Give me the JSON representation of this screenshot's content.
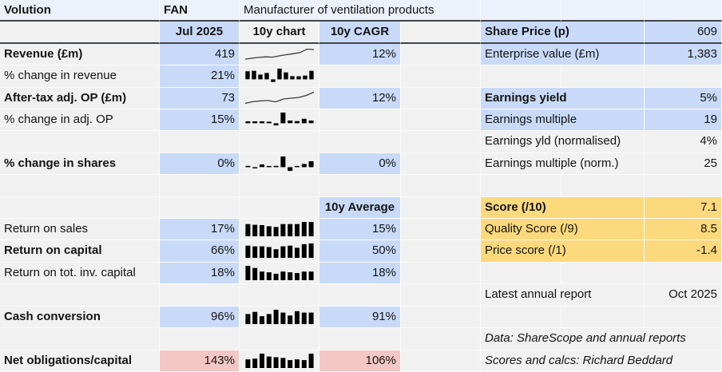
{
  "title_row": {
    "company": "Volution",
    "ticker": "FAN",
    "description": "Manufacturer of ventilation products"
  },
  "column_headers": {
    "period": "Jul 2025",
    "chart_col": "10y chart",
    "cagr_col": "10y CAGR",
    "average_header": "10y Average"
  },
  "metrics": [
    {
      "label": "Revenue (£m)",
      "value": "419",
      "cagr": "12%"
    },
    {
      "label": "% change in revenue",
      "value": "21%",
      "cagr": ""
    },
    {
      "label": "After-tax adj. OP (£m)",
      "value": "73",
      "cagr": "12%"
    },
    {
      "label": "% change in adj. OP",
      "value": "15%",
      "cagr": ""
    },
    {
      "label": "% change in shares",
      "value": "0%",
      "cagr": "0%"
    },
    {
      "label": "Return on sales",
      "value": "17%",
      "average": "15%"
    },
    {
      "label": "Return on capital",
      "value": "66%",
      "average": "50%"
    },
    {
      "label": "Return on tot. inv. capital",
      "value": "18%",
      "average": "18%"
    },
    {
      "label": "Cash conversion",
      "value": "96%",
      "average": "91%"
    },
    {
      "label": "Net obligations/capital",
      "value": "143%",
      "average": "106%"
    }
  ],
  "summary": [
    {
      "label": "Share Price (p)",
      "value": "609"
    },
    {
      "label": "Enterprise value (£m)",
      "value": "1,383"
    },
    {
      "label": "Earnings yield",
      "value": "5%"
    },
    {
      "label": "Earnings multiple",
      "value": "19"
    },
    {
      "label": "Earnings yld (normalised)",
      "value": "4%"
    },
    {
      "label": "Earnings multiple (norm.)",
      "value": "25"
    }
  ],
  "scores": [
    {
      "label": "Score (/10)",
      "value": "7.1"
    },
    {
      "label": "Quality Score (/9)",
      "value": "8.5"
    },
    {
      "label": "Price score (/1)",
      "value": "-1.4"
    }
  ],
  "report": {
    "label": "Latest annual report",
    "value": "Oct 2025"
  },
  "footnotes": [
    "Data: ShareScope and annual reports",
    "Scores and calcs: Richard Beddard"
  ],
  "colors": {
    "highlight_blue": "#c9daf8",
    "score_yellow": "#fbd97c",
    "warning_pink": "#f3c7c4",
    "bar_black": "#000000",
    "line_grey": "#3a3a3a"
  },
  "chart_data": {
    "units": "normalized 0-1, estimated from sparkline pixels; negatives plot below baseline",
    "sparks": {
      "revenue_10y": {
        "type": "line",
        "title": "Revenue (£m) 10y chart",
        "values": [
          0.14,
          0.21,
          0.27,
          0.31,
          0.29,
          0.39,
          0.47,
          0.54,
          0.63,
          0.88,
          0.85
        ]
      },
      "op_10y": {
        "type": "line",
        "title": "After-tax adj. OP (£m) 10y chart",
        "values": [
          0.12,
          0.24,
          0.3,
          0.33,
          0.23,
          0.44,
          0.5,
          0.55,
          0.7,
          0.95
        ]
      },
      "pct_change_revenue": {
        "type": "bar",
        "title": "% change in revenue 10y chart",
        "values": [
          0.75,
          0.8,
          0.45,
          0.6,
          -0.25,
          1.0,
          0.65,
          0.3,
          0.28,
          0.35,
          0.8
        ]
      },
      "pct_change_op": {
        "type": "bar",
        "title": "% change in adj. OP 10y chart",
        "values": [
          0.18,
          0.18,
          0.18,
          0.15,
          -0.2,
          1.0,
          0.25,
          0.2,
          0.42,
          0.25
        ]
      },
      "pct_change_shares": {
        "type": "bar",
        "title": "% change in shares 10y chart",
        "values": [
          0.12,
          -0.1,
          0.25,
          0.1,
          0.12,
          1.0,
          -0.35,
          0.1,
          0.3,
          0.55
        ]
      },
      "return_on_sales": {
        "type": "bar",
        "title": "Return on sales 10y chart",
        "values": [
          0.85,
          0.8,
          0.78,
          0.7,
          0.65,
          0.85,
          0.85,
          0.85,
          1.0,
          1.0
        ]
      },
      "return_on_capital": {
        "type": "bar",
        "title": "Return on capital 10y chart",
        "values": [
          0.85,
          0.8,
          0.8,
          0.75,
          0.6,
          0.8,
          0.85,
          0.7,
          0.95,
          1.0
        ]
      },
      "return_on_tic": {
        "type": "bar",
        "title": "Return on tot. inv. capital 10y chart",
        "values": [
          1.0,
          0.85,
          0.6,
          0.55,
          0.45,
          0.6,
          0.55,
          0.5,
          0.6,
          0.6
        ]
      },
      "cash_conversion": {
        "type": "bar",
        "title": "Cash conversion 10y chart",
        "values": [
          0.7,
          0.85,
          0.55,
          0.7,
          1.0,
          0.8,
          0.6,
          0.9,
          0.8,
          0.8
        ]
      },
      "net_obligations": {
        "type": "bar",
        "title": "Net obligations/capital 10y chart",
        "values": [
          0.6,
          0.65,
          1.0,
          0.8,
          0.75,
          0.7,
          0.55,
          0.6,
          0.55,
          1.0
        ]
      }
    }
  }
}
